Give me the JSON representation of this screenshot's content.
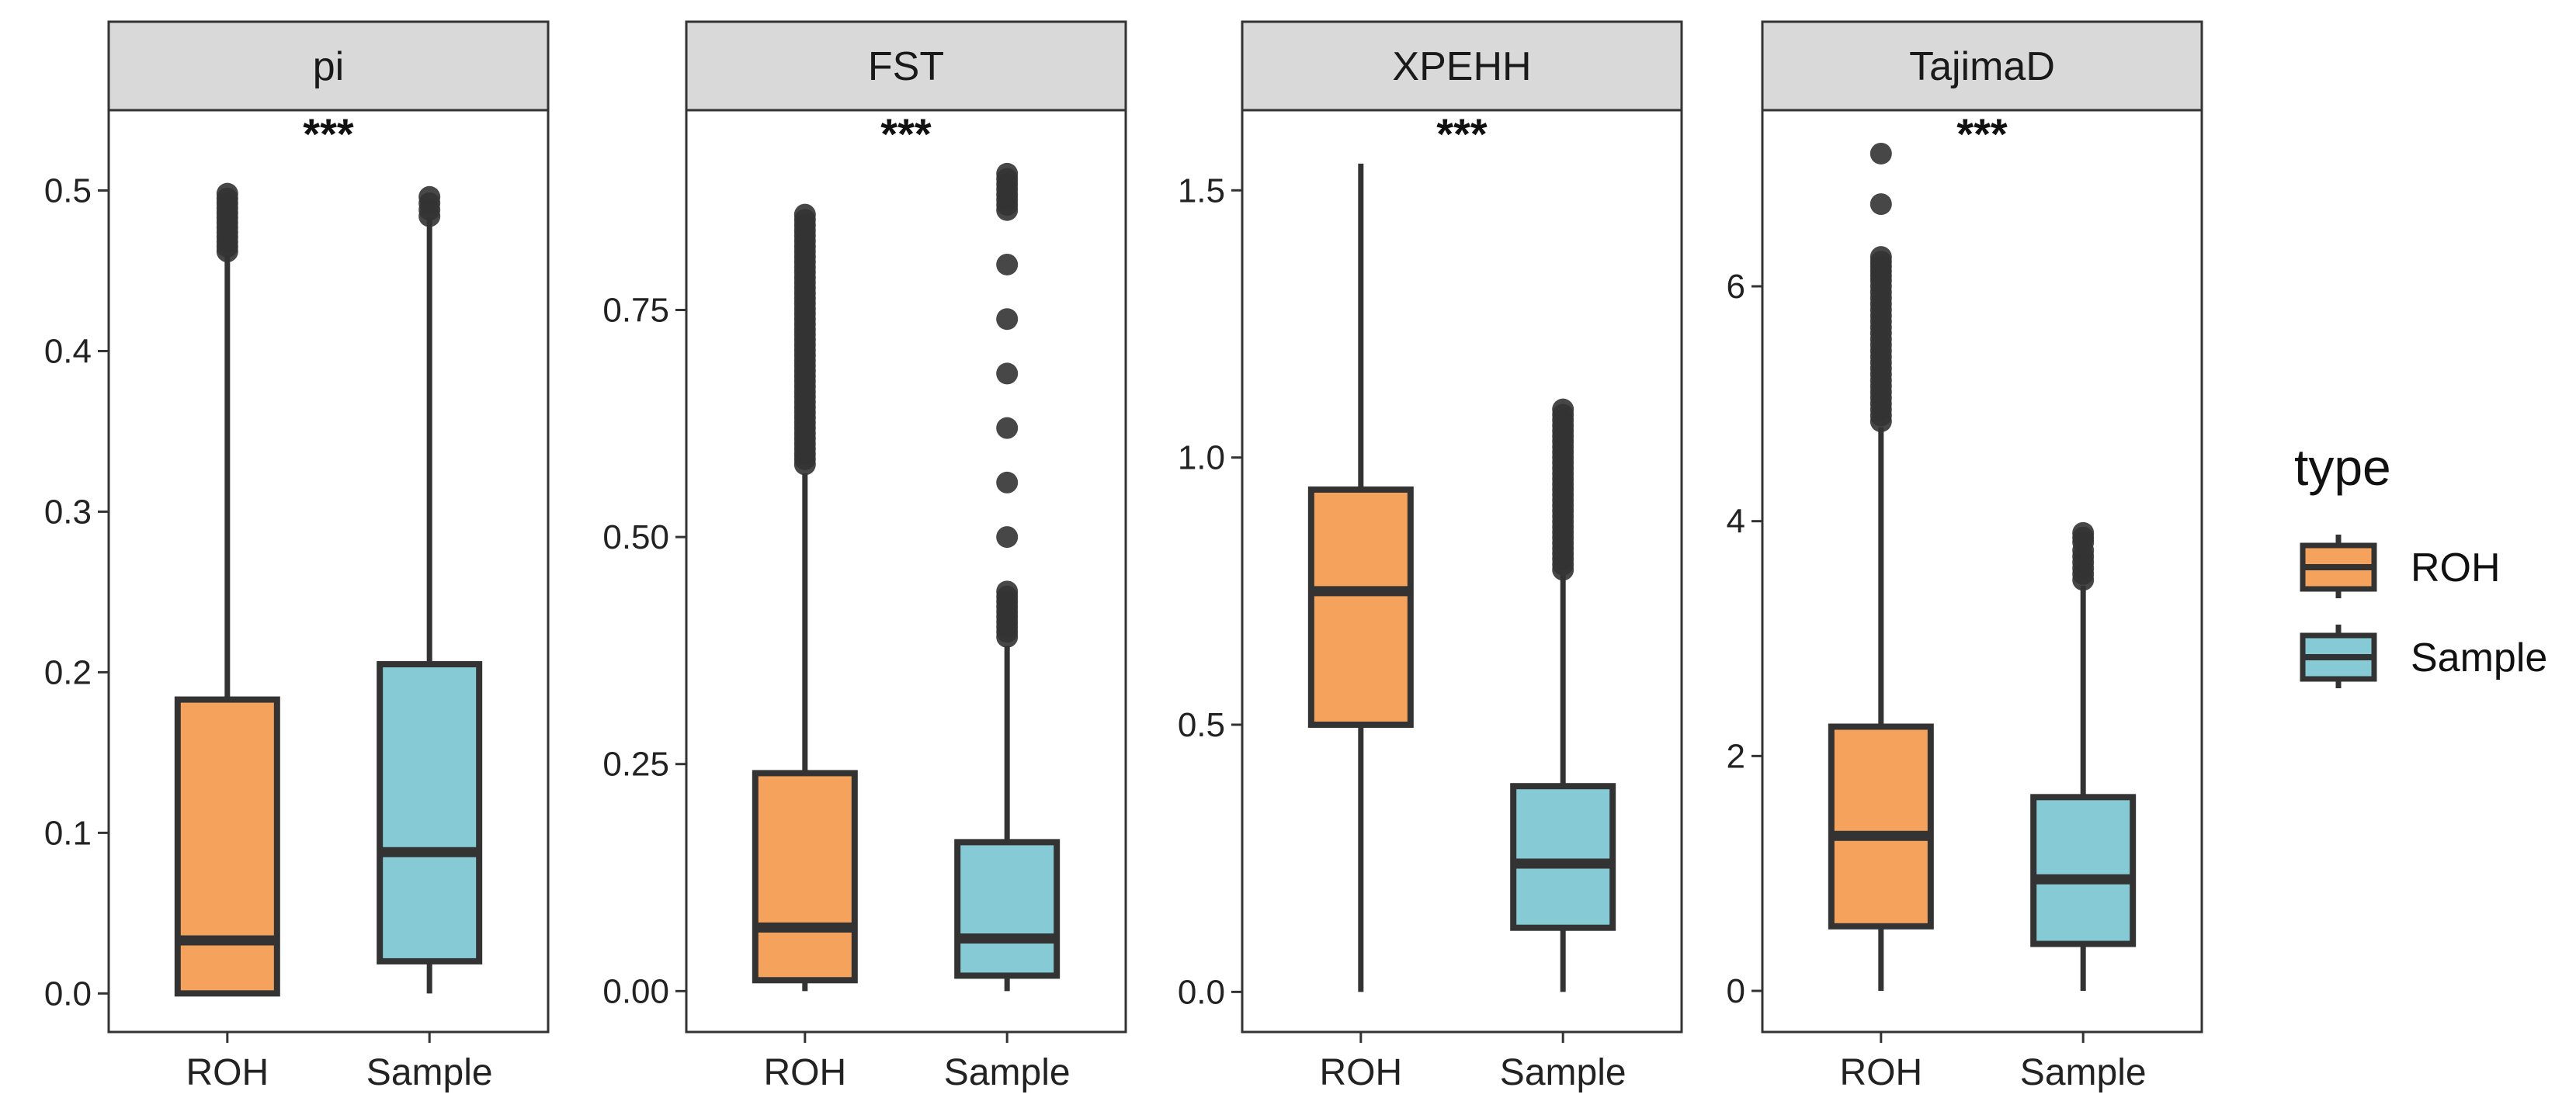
{
  "chart_data": {
    "type": "boxplot",
    "categories": [
      "ROH",
      "Sample"
    ],
    "colors": {
      "ROH": "#f5a35c",
      "Sample": "#86cad6",
      "outline": "#333333",
      "outlier": "#333333",
      "strip": "#d9d9d9"
    },
    "legend": {
      "title": "type",
      "entries": [
        "ROH",
        "Sample"
      ],
      "position": "right"
    },
    "panels": [
      {
        "name": "pi",
        "significance": "***",
        "ylim": [
          -0.024,
          0.55
        ],
        "ticks": [
          0.0,
          0.1,
          0.2,
          0.3,
          0.4,
          0.5
        ],
        "tick_labels": [
          "0.0",
          "0.1",
          "0.2",
          "0.3",
          "0.4",
          "0.5"
        ],
        "boxes": [
          {
            "category": "ROH",
            "whisker_low": 0.0,
            "q1": 0.0,
            "median": 0.033,
            "q3": 0.183,
            "whisker_high": 0.46,
            "outliers": [
              0.462,
              0.468,
              0.474,
              0.48,
              0.486,
              0.492,
              0.498
            ]
          },
          {
            "category": "Sample",
            "whisker_low": 0.0,
            "q1": 0.02,
            "median": 0.088,
            "q3": 0.205,
            "whisker_high": 0.483,
            "outliers": [
              0.484,
              0.488,
              0.492,
              0.496
            ]
          }
        ]
      },
      {
        "name": "FST",
        "significance": "***",
        "ylim": [
          -0.045,
          0.97
        ],
        "ticks": [
          0.0,
          0.25,
          0.5,
          0.75
        ],
        "tick_labels": [
          "0.00",
          "0.25",
          "0.50",
          "0.75"
        ],
        "boxes": [
          {
            "category": "ROH",
            "whisker_low": 0.0,
            "q1": 0.012,
            "median": 0.07,
            "q3": 0.24,
            "whisker_high": 0.57,
            "outliers": [
              0.58,
              0.62,
              0.66,
              0.7,
              0.74,
              0.78,
              0.82,
              0.855
            ]
          },
          {
            "category": "Sample",
            "whisker_low": 0.0,
            "q1": 0.017,
            "median": 0.058,
            "q3": 0.164,
            "whisker_high": 0.38,
            "outliers": [
              0.39,
              0.44,
              0.5,
              0.56,
              0.62,
              0.68,
              0.74,
              0.8,
              0.86,
              0.9
            ]
          }
        ]
      },
      {
        "name": "XPEHH",
        "significance": "***",
        "ylim": [
          -0.075,
          1.65
        ],
        "ticks": [
          0.0,
          0.5,
          1.0,
          1.5
        ],
        "tick_labels": [
          "0.0",
          "0.5",
          "1.0",
          "1.5"
        ],
        "boxes": [
          {
            "category": "ROH",
            "whisker_low": 0.0,
            "q1": 0.5,
            "median": 0.75,
            "q3": 0.94,
            "whisker_high": 1.55,
            "outliers": []
          },
          {
            "category": "Sample",
            "whisker_low": 0.0,
            "q1": 0.12,
            "median": 0.24,
            "q3": 0.385,
            "whisker_high": 0.78,
            "outliers": [
              0.79,
              0.84,
              0.88,
              0.92,
              0.96,
              1.0,
              1.04,
              1.09
            ]
          }
        ]
      },
      {
        "name": "TajimaD",
        "significance": "***",
        "ylim": [
          -0.35,
          7.5
        ],
        "ticks": [
          0,
          2,
          4,
          6
        ],
        "tick_labels": [
          "0",
          "2",
          "4",
          "6"
        ],
        "boxes": [
          {
            "category": "ROH",
            "whisker_low": 0.0,
            "q1": 0.55,
            "median": 1.32,
            "q3": 2.25,
            "whisker_high": 4.8,
            "outliers": [
              4.85,
              5.0,
              5.15,
              5.3,
              5.45,
              5.6,
              5.75,
              5.9,
              6.05,
              6.25,
              6.7,
              7.13
            ]
          },
          {
            "category": "Sample",
            "whisker_low": 0.0,
            "q1": 0.4,
            "median": 0.95,
            "q3": 1.65,
            "whisker_high": 3.45,
            "outliers": [
              3.5,
              3.65,
              3.75,
              3.82,
              3.9
            ]
          }
        ]
      }
    ]
  }
}
